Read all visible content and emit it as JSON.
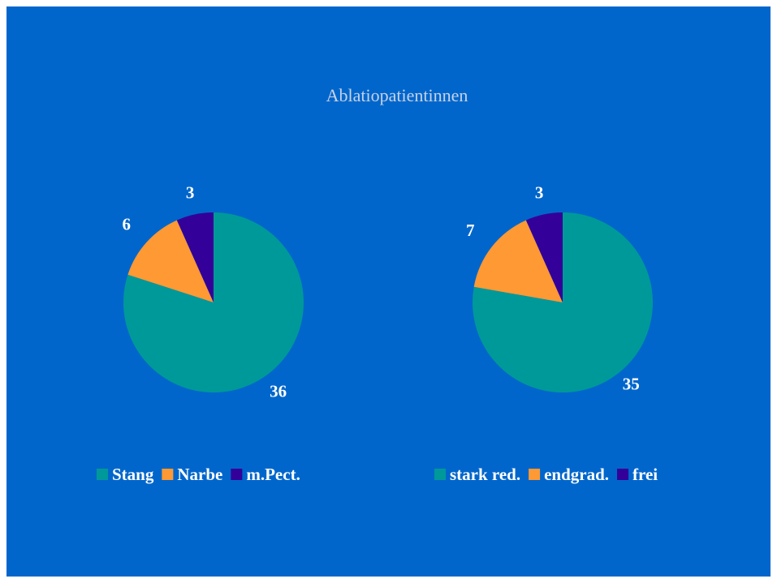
{
  "title": "Ablatiopatientinnen",
  "chart_data": [
    {
      "type": "pie",
      "categories": [
        "Stang",
        "Narbe",
        "m.Pect."
      ],
      "values": [
        36,
        6,
        3
      ],
      "colors": [
        "#009999",
        "#FF9933",
        "#330099"
      ],
      "legend_position": "bottom"
    },
    {
      "type": "pie",
      "categories": [
        "stark red.",
        "endgrad.",
        "frei"
      ],
      "values": [
        35,
        7,
        3
      ],
      "colors": [
        "#009999",
        "#FF9933",
        "#330099"
      ],
      "legend_position": "bottom"
    }
  ]
}
